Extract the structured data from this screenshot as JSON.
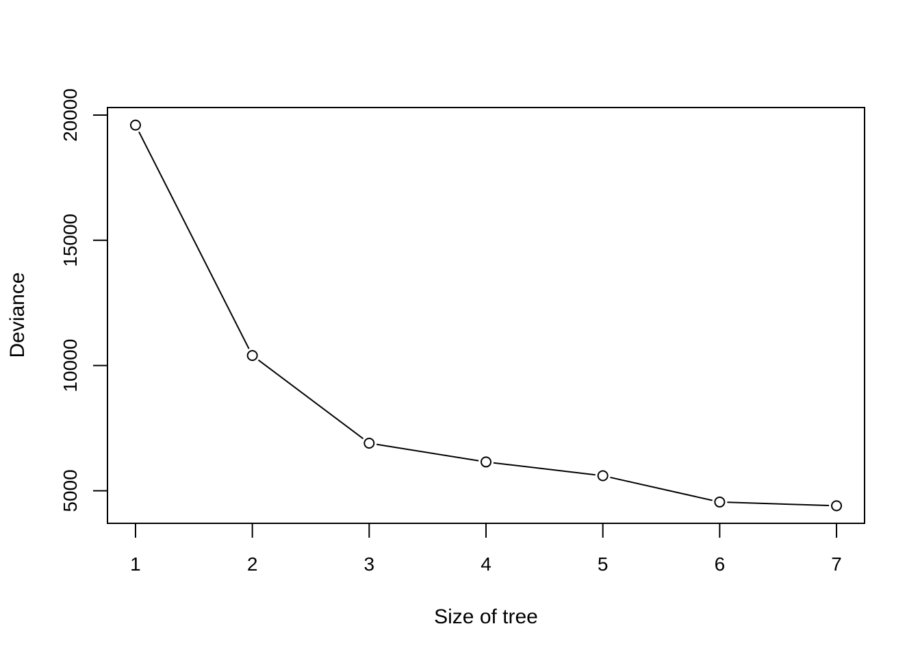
{
  "chart_data": {
    "type": "line",
    "title": "",
    "xlabel": "Size of tree",
    "ylabel": "Deviance",
    "x": [
      1,
      2,
      3,
      4,
      5,
      6,
      7
    ],
    "series": [
      {
        "values": [
          19600,
          10400,
          6900,
          6150,
          5600,
          4550,
          4400
        ]
      }
    ],
    "x_ticks": [
      "1",
      "2",
      "3",
      "4",
      "5",
      "6",
      "7"
    ],
    "y_ticks": [
      "5000",
      "10000",
      "15000",
      "20000"
    ],
    "xlim": [
      0.76,
      7.24
    ],
    "ylim": [
      3700,
      20300
    ],
    "grid": false,
    "legend": "none",
    "line_color": "#000000",
    "marker": "open-circle"
  }
}
